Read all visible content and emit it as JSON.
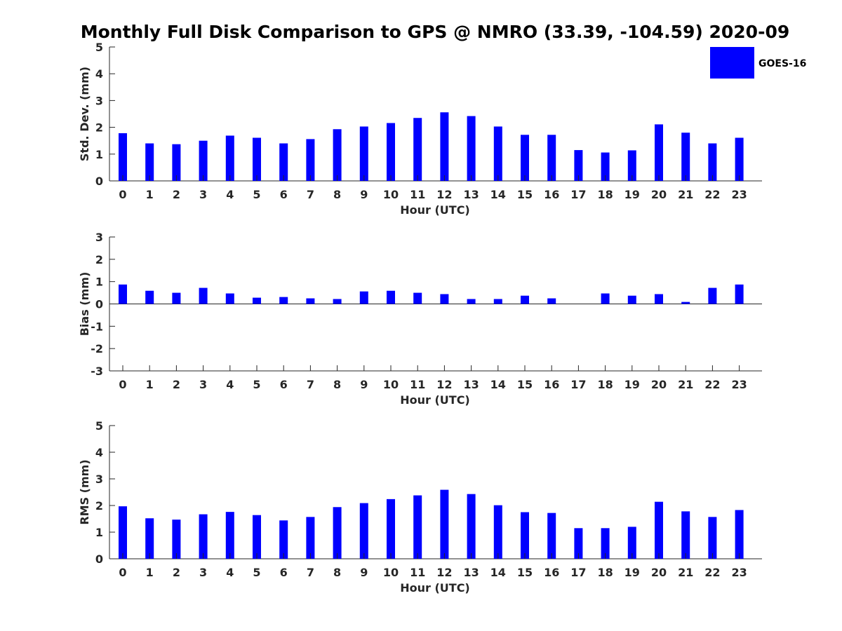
{
  "title": "Monthly Full Disk Comparison to GPS @ NMRO (33.39, -104.59) 2020-09",
  "legend": {
    "label": "GOES-16",
    "color": "#0000ff"
  },
  "bar_color": "#0000ff",
  "chart_data": [
    {
      "type": "bar",
      "name": "std-dev",
      "title": "",
      "xlabel": "Hour (UTC)",
      "ylabel": "Std. Dev. (mm)",
      "categories": [
        "0",
        "1",
        "2",
        "3",
        "4",
        "5",
        "6",
        "7",
        "8",
        "9",
        "10",
        "11",
        "12",
        "13",
        "14",
        "15",
        "16",
        "17",
        "18",
        "19",
        "20",
        "21",
        "22",
        "23"
      ],
      "values": [
        1.78,
        1.4,
        1.37,
        1.5,
        1.69,
        1.61,
        1.4,
        1.56,
        1.93,
        2.03,
        2.16,
        2.35,
        2.56,
        2.42,
        2.03,
        1.72,
        1.72,
        1.15,
        1.06,
        1.14,
        2.11,
        1.8,
        1.4,
        1.61
      ],
      "ylim": [
        0,
        5
      ],
      "yticks": [
        0,
        1,
        2,
        3,
        4,
        5
      ],
      "series_name": "GOES-16"
    },
    {
      "type": "bar",
      "name": "bias",
      "title": "",
      "xlabel": "Hour (UTC)",
      "ylabel": "Bias (mm)",
      "categories": [
        "0",
        "1",
        "2",
        "3",
        "4",
        "5",
        "6",
        "7",
        "8",
        "9",
        "10",
        "11",
        "12",
        "13",
        "14",
        "15",
        "16",
        "17",
        "18",
        "19",
        "20",
        "21",
        "22",
        "23"
      ],
      "values": [
        0.87,
        0.59,
        0.5,
        0.72,
        0.47,
        0.28,
        0.31,
        0.25,
        0.22,
        0.56,
        0.59,
        0.5,
        0.44,
        0.22,
        0.22,
        0.37,
        0.25,
        0.0,
        0.47,
        0.37,
        0.44,
        0.09,
        0.72,
        0.87
      ],
      "ylim": [
        -3,
        3
      ],
      "yticks": [
        -3,
        -2,
        -1,
        0,
        1,
        2,
        3
      ],
      "series_name": "GOES-16"
    },
    {
      "type": "bar",
      "name": "rms",
      "title": "",
      "xlabel": "Hour (UTC)",
      "ylabel": "RMS (mm)",
      "categories": [
        "0",
        "1",
        "2",
        "3",
        "4",
        "5",
        "6",
        "7",
        "8",
        "9",
        "10",
        "11",
        "12",
        "13",
        "14",
        "15",
        "16",
        "17",
        "18",
        "19",
        "20",
        "21",
        "22",
        "23"
      ],
      "values": [
        1.97,
        1.52,
        1.47,
        1.67,
        1.76,
        1.64,
        1.44,
        1.57,
        1.94,
        2.09,
        2.24,
        2.38,
        2.59,
        2.43,
        2.01,
        1.75,
        1.72,
        1.15,
        1.15,
        1.2,
        2.14,
        1.78,
        1.57,
        1.83
      ],
      "ylim": [
        0,
        5
      ],
      "yticks": [
        0,
        1,
        2,
        3,
        4,
        5
      ],
      "series_name": "GOES-16"
    }
  ]
}
